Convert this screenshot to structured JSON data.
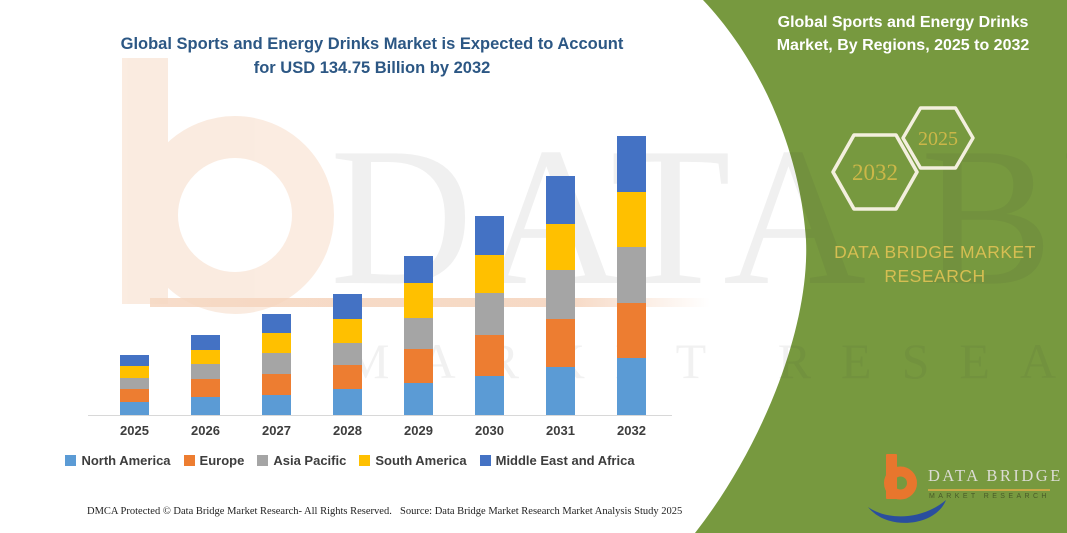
{
  "header": {
    "line1": "Global Sports and Energy Drinks Market is Expected to Account",
    "line2": "for USD 134.75 Billion by 2032"
  },
  "side_panel": {
    "title": "Global Sports and Energy Drinks Market, By Regions, 2025 to 2032",
    "hexagons": [
      {
        "label": "2032"
      },
      {
        "label": "2025"
      }
    ],
    "brand_text_line1": "DATA BRIDGE MARKET",
    "brand_text_line2": "RESEARCH",
    "logo": {
      "name": "DATA BRIDGE",
      "subtitle": "MARKET RESEARCH"
    },
    "panel_color": "#77993F"
  },
  "watermark": {
    "line1": "DATA BRIDGE",
    "line2": "MARKET RESEARCH"
  },
  "footer": {
    "dmca": "DMCA Protected © Data Bridge Market Research-  All Rights Reserved.",
    "source": "Source: Data Bridge Market Research  Market Analysis Study 2025"
  },
  "chart_data": {
    "type": "bar",
    "stacked": true,
    "title": "Global Sports and Energy Drinks Market is Expected to Account for USD 134.75 Billion by 2032",
    "unit": "USD Billion",
    "xlabel": "",
    "ylabel": "",
    "y_axis_visible": false,
    "gridlines": false,
    "legend_position": "bottom",
    "values_estimated_from_bar_heights": true,
    "labeled_total_2032": 134.75,
    "categories": [
      "2025",
      "2026",
      "2027",
      "2028",
      "2029",
      "2030",
      "2031",
      "2032"
    ],
    "series": [
      {
        "name": "North America",
        "color": "#5B9BD5",
        "values": [
          6.4,
          8.8,
          9.7,
          12.4,
          15.6,
          18.8,
          23.3,
          27.35
        ]
      },
      {
        "name": "Europe",
        "color": "#ED7D31",
        "values": [
          6.4,
          8.8,
          10.1,
          11.7,
          16.1,
          19.8,
          23.3,
          26.9
        ]
      },
      {
        "name": "Asia Pacific",
        "color": "#A5A5A5",
        "values": [
          5.3,
          7.2,
          10.0,
          10.8,
          15.3,
          20.4,
          23.3,
          26.7
        ]
      },
      {
        "name": "South America",
        "color": "#FFC000",
        "values": [
          5.5,
          6.8,
          9.7,
          11.7,
          16.6,
          18.2,
          22.6,
          26.9
        ]
      },
      {
        "name": "Middle East and Africa",
        "color": "#4472C4",
        "values": [
          5.3,
          6.9,
          9.2,
          11.7,
          13.2,
          18.8,
          22.9,
          26.9
        ]
      }
    ],
    "totals": [
      28.9,
      38.5,
      48.7,
      58.3,
      76.8,
      96.0,
      115.4,
      134.75
    ]
  }
}
